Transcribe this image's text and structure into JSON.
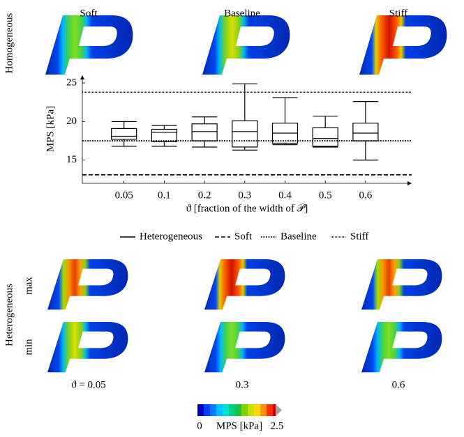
{
  "panels": {
    "homogeneous": "Homogeneous",
    "heterogeneous": "Heterogeneous",
    "columns": [
      "Soft",
      "Baseline",
      "Stiff"
    ],
    "rows": [
      "max",
      "min"
    ],
    "bottom": [
      "ϑ = 0.05",
      "0.3",
      "0.6"
    ]
  },
  "chart_data": {
    "type": "box",
    "categories": [
      "0.05",
      "0.1",
      "0.2",
      "0.3",
      "0.4",
      "0.5",
      "0.6"
    ],
    "x_label": "ϑ [fraction of the width of 𝒫]",
    "y_label": "MPS [kPa]",
    "ylim": [
      12,
      26
    ],
    "yticks": [
      15,
      20,
      25
    ],
    "series": [
      {
        "name": "Heterogeneous",
        "color": "#000000",
        "values": [
          {
            "low": 16.8,
            "q1": 17.7,
            "median": 18.1,
            "q3": 19.1,
            "high": 20.0
          },
          {
            "low": 16.8,
            "q1": 17.4,
            "median": 18.6,
            "q3": 19.0,
            "high": 19.5
          },
          {
            "low": 16.7,
            "q1": 17.5,
            "median": 18.7,
            "q3": 19.7,
            "high": 20.6
          },
          {
            "low": 16.3,
            "q1": 16.7,
            "median": 18.7,
            "q3": 20.1,
            "high": 24.9
          },
          {
            "low": 17.0,
            "q1": 17.2,
            "median": 18.5,
            "q3": 19.8,
            "high": 23.1
          },
          {
            "low": 16.7,
            "q1": 16.8,
            "median": 17.8,
            "q3": 19.2,
            "high": 20.7
          },
          {
            "low": 15.0,
            "q1": 17.5,
            "median": 18.5,
            "q3": 19.8,
            "high": 22.6
          }
        ]
      }
    ],
    "reference_lines": [
      {
        "name": "Soft",
        "value": 13.1,
        "style": "dashed"
      },
      {
        "name": "Baseline",
        "value": 17.5,
        "style": "dotted"
      },
      {
        "name": "Stiff",
        "value": 23.8,
        "style": "densely-dotted"
      }
    ]
  },
  "colorbar": {
    "label": "MPS [kPa]",
    "lim": [
      0,
      2.5
    ],
    "ticks": [
      0,
      2.5
    ]
  }
}
